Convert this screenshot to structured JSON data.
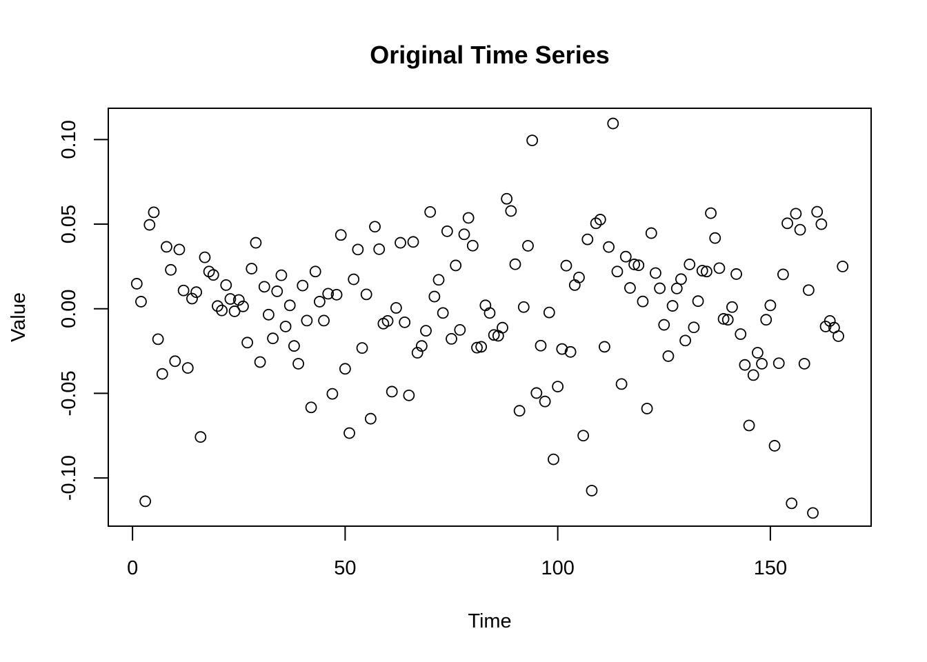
{
  "chart_data": {
    "type": "scatter",
    "title": "Original Time Series",
    "xlabel": "Time",
    "ylabel": "Value",
    "xlim": [
      -5.7,
      173.7
    ],
    "ylim": [
      -0.1285,
      0.1185
    ],
    "xticks": [
      0,
      50,
      100,
      150
    ],
    "xtick_labels": [
      "0",
      "50",
      "100",
      "150"
    ],
    "yticks": [
      -0.1,
      -0.05,
      0.0,
      0.05,
      0.1
    ],
    "ytick_labels": [
      "-0.10",
      "-0.05",
      "0.00",
      "0.05",
      "0.10"
    ],
    "grid": false,
    "legend": false,
    "marker": "open-circle",
    "x": [
      1,
      2,
      3,
      4,
      5,
      6,
      7,
      8,
      9,
      10,
      11,
      12,
      13,
      14,
      15,
      16,
      17,
      18,
      19,
      20,
      21,
      22,
      23,
      24,
      25,
      26,
      27,
      28,
      29,
      30,
      31,
      32,
      33,
      34,
      35,
      36,
      37,
      38,
      39,
      40,
      41,
      42,
      43,
      44,
      45,
      46,
      47,
      48,
      49,
      50,
      51,
      52,
      53,
      54,
      55,
      56,
      57,
      58,
      59,
      60,
      61,
      62,
      63,
      64,
      65,
      66,
      67,
      68,
      69,
      70,
      71,
      72,
      73,
      74,
      75,
      76,
      77,
      78,
      79,
      80,
      81,
      82,
      83,
      84,
      85,
      86,
      87,
      88,
      89,
      90,
      91,
      92,
      93,
      94,
      95,
      96,
      97,
      98,
      99,
      100,
      101,
      102,
      103,
      104,
      105,
      106,
      107,
      108,
      109,
      110,
      111,
      112,
      113,
      114,
      115,
      116,
      117,
      118,
      119,
      120,
      121,
      122,
      123,
      124,
      125,
      126,
      127,
      128,
      129,
      130,
      131,
      132,
      133,
      134,
      135,
      136,
      137,
      138,
      139,
      140,
      141,
      142,
      143,
      144,
      145,
      146,
      147,
      148,
      149,
      150,
      151,
      152,
      153,
      154,
      155,
      156,
      157,
      158,
      159,
      160,
      161,
      162,
      163,
      164,
      165,
      166,
      167
    ],
    "y": [
      0.0148,
      0.0042,
      -0.1138,
      0.0496,
      0.057,
      -0.018,
      -0.0385,
      0.0366,
      0.023,
      -0.031,
      0.035,
      0.0108,
      -0.035,
      0.006,
      0.0098,
      -0.0758,
      0.0304,
      0.022,
      0.02,
      0.0016,
      -0.001,
      0.014,
      0.0058,
      -0.0015,
      0.0052,
      0.0014,
      -0.02,
      0.0237,
      0.039,
      -0.0315,
      0.013,
      -0.0035,
      -0.0175,
      0.0103,
      0.0198,
      -0.0105,
      0.002,
      -0.022,
      -0.0325,
      0.0137,
      -0.007,
      -0.0583,
      0.022,
      0.0042,
      -0.007,
      0.0089,
      -0.0503,
      0.0083,
      0.0436,
      -0.0355,
      -0.0735,
      0.0174,
      0.035,
      -0.0232,
      0.0085,
      -0.065,
      0.0485,
      0.0352,
      -0.0088,
      -0.0072,
      -0.049,
      0.0005,
      0.039,
      -0.008,
      -0.0512,
      0.0395,
      -0.026,
      -0.022,
      -0.013,
      0.0572,
      0.0072,
      0.0171,
      -0.0025,
      0.0458,
      -0.0178,
      0.0256,
      -0.0125,
      0.044,
      0.0537,
      0.0373,
      -0.023,
      -0.0225,
      0.002,
      -0.0025,
      -0.0155,
      -0.016,
      -0.0112,
      0.065,
      0.0578,
      0.0263,
      -0.0603,
      0.001,
      0.0372,
      0.0995,
      -0.0498,
      -0.0218,
      -0.0548,
      -0.0022,
      -0.089,
      -0.046,
      -0.0238,
      0.0255,
      -0.0255,
      0.014,
      0.0185,
      -0.075,
      0.041,
      -0.1075,
      0.0505,
      0.0527,
      -0.0225,
      0.0365,
      0.1095,
      0.022,
      -0.0445,
      0.0308,
      0.0123,
      0.0262,
      0.0257,
      0.0043,
      -0.059,
      0.0447,
      0.0211,
      0.0121,
      -0.0095,
      -0.028,
      0.0017,
      0.012,
      0.0175,
      -0.0188,
      0.0262,
      -0.011,
      0.0045,
      0.0225,
      0.022,
      0.0565,
      0.0418,
      0.024,
      -0.006,
      -0.0065,
      0.001,
      0.0205,
      -0.015,
      -0.0332,
      -0.069,
      -0.0392,
      -0.026,
      -0.0325,
      -0.0065,
      0.002,
      -0.081,
      -0.0322,
      0.0203,
      0.0505,
      -0.115,
      0.0562,
      0.0467,
      -0.0325,
      0.011,
      -0.1207,
      0.0573,
      0.05,
      -0.0105,
      -0.0072,
      -0.0112,
      -0.0162,
      0.025
    ]
  }
}
